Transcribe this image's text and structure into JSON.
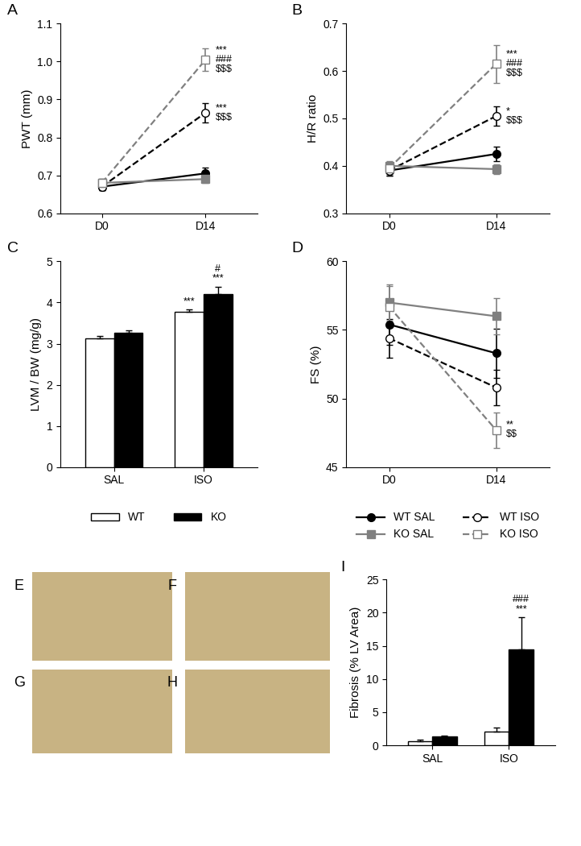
{
  "chart_data": [
    {
      "type": "line",
      "panel": "A",
      "y_label": "PWT (mm)",
      "categories": [
        "D0",
        "D14"
      ],
      "ylim": [
        0.6,
        1.1
      ],
      "yticks": [
        0.6,
        0.7,
        0.8,
        0.9,
        {
          "value": 1,
          "label": "1.0"
        },
        1.1
      ],
      "series": [
        {
          "name": "WT SAL",
          "color": "#000000",
          "marker": "circle",
          "line_style": "solid",
          "values": [
            0.67,
            0.705
          ],
          "errors": [
            0.01,
            0.015
          ]
        },
        {
          "name": "WT ISO",
          "color": "#000000",
          "marker": "open_circle",
          "line_style": "dashed",
          "values": [
            0.67,
            0.865
          ],
          "errors": [
            0.01,
            0.025
          ]
        },
        {
          "name": "KO SAL",
          "color": "#808080",
          "marker": "square",
          "line_style": "solid",
          "values": [
            0.68,
            0.69
          ],
          "errors": [
            0.01,
            0.01
          ]
        },
        {
          "name": "KO ISO",
          "color": "#808080",
          "marker": "open_square",
          "line_style": "dashed",
          "values": [
            0.68,
            1.005
          ],
          "errors": [
            0.01,
            0.03
          ]
        }
      ],
      "annotations": [
        {
          "series": "KO ISO",
          "category": "D14",
          "text": [
            "***",
            "###",
            "$$$"
          ]
        },
        {
          "series": "WT ISO",
          "category": "D14",
          "text": [
            "***",
            "$$$"
          ]
        }
      ]
    },
    {
      "type": "line",
      "panel": "B",
      "y_label": "H/R ratio",
      "categories": [
        "D0",
        "D14"
      ],
      "ylim": [
        0.3,
        0.7
      ],
      "yticks": [
        0.3,
        0.4,
        0.5,
        0.6,
        0.7
      ],
      "series": [
        {
          "name": "WT SAL",
          "color": "#000000",
          "marker": "circle",
          "line_style": "solid",
          "values": [
            0.39,
            0.425
          ],
          "errors": [
            0.01,
            0.015
          ]
        },
        {
          "name": "WT ISO",
          "color": "#000000",
          "marker": "open_circle",
          "line_style": "dashed",
          "values": [
            0.39,
            0.505
          ],
          "errors": [
            0.01,
            0.02
          ]
        },
        {
          "name": "KO SAL",
          "color": "#808080",
          "marker": "square",
          "line_style": "solid",
          "values": [
            0.4,
            0.393
          ],
          "errors": [
            0.01,
            0.01
          ]
        },
        {
          "name": "KO ISO",
          "color": "#808080",
          "marker": "open_square",
          "line_style": "dashed",
          "values": [
            0.395,
            0.615
          ],
          "errors": [
            0.01,
            0.04
          ]
        }
      ],
      "annotations": [
        {
          "series": "KO ISO",
          "category": "D14",
          "text": [
            "***",
            "###",
            "$$$"
          ]
        },
        {
          "series": "WT ISO",
          "category": "D14",
          "text": [
            "*",
            "$$$"
          ]
        }
      ]
    },
    {
      "type": "bar",
      "panel": "C",
      "y_label": "LVM / BW (mg/g)",
      "categories": [
        "SAL",
        "ISO"
      ],
      "ylim": [
        0,
        5
      ],
      "yticks": [
        0,
        1,
        2,
        3,
        4,
        5
      ],
      "legend": "upper center",
      "series": [
        {
          "name": "WT",
          "color": "#ffffff",
          "values": [
            3.12,
            3.77
          ],
          "errors": [
            0.06,
            0.06
          ]
        },
        {
          "name": "KO",
          "color": "#000000",
          "values": [
            3.27,
            4.2
          ],
          "errors": [
            0.05,
            0.18
          ]
        }
      ],
      "annotations": [
        {
          "series": "WT",
          "category": "ISO",
          "text": [
            "***"
          ]
        },
        {
          "series": "KO",
          "category": "ISO",
          "text": [
            "#",
            "***"
          ]
        }
      ]
    },
    {
      "type": "line",
      "panel": "D",
      "y_label": "FS (%)",
      "categories": [
        "D0",
        "D14"
      ],
      "ylim": [
        45,
        60
      ],
      "yticks": [
        45,
        50,
        55,
        60
      ],
      "legend": "upper center",
      "series": [
        {
          "name": "WT SAL",
          "color": "#000000",
          "marker": "circle",
          "line_style": "solid",
          "values": [
            55.4,
            53.3
          ],
          "errors": [
            1.5,
            1.8
          ]
        },
        {
          "name": "WT ISO",
          "color": "#000000",
          "marker": "open_circle",
          "line_style": "dashed",
          "values": [
            54.4,
            50.8
          ],
          "errors": [
            1.4,
            1.3
          ]
        },
        {
          "name": "KO SAL",
          "color": "#808080",
          "marker": "square",
          "line_style": "solid",
          "values": [
            57.0,
            56.0
          ],
          "errors": [
            1.3,
            1.3
          ]
        },
        {
          "name": "KO ISO",
          "color": "#808080",
          "marker": "open_square",
          "line_style": "dashed",
          "values": [
            56.7,
            47.7
          ],
          "errors": [
            1.5,
            1.3
          ]
        }
      ],
      "annotations": [
        {
          "series": "KO ISO",
          "category": "D14",
          "text": [
            "**",
            "$$"
          ]
        }
      ]
    },
    {
      "type": "bar",
      "panel": "I",
      "y_label": "Fibrosis (% LV Area)",
      "categories": [
        "SAL",
        "ISO"
      ],
      "ylim": [
        0,
        25
      ],
      "yticks": [
        0,
        5,
        10,
        15,
        20,
        25
      ],
      "series": [
        {
          "name": "WT",
          "color": "#ffffff",
          "values": [
            0.6,
            2.1
          ],
          "errors": [
            0.2,
            0.6
          ]
        },
        {
          "name": "KO",
          "color": "#000000",
          "values": [
            1.3,
            14.5
          ],
          "errors": [
            0.2,
            4.8
          ]
        }
      ],
      "annotations": [
        {
          "series": "KO",
          "category": "ISO",
          "text": [
            "###",
            "***"
          ]
        }
      ]
    }
  ],
  "images": [
    {
      "label": "E"
    },
    {
      "label": "F"
    },
    {
      "label": "G"
    },
    {
      "label": "H"
    }
  ]
}
